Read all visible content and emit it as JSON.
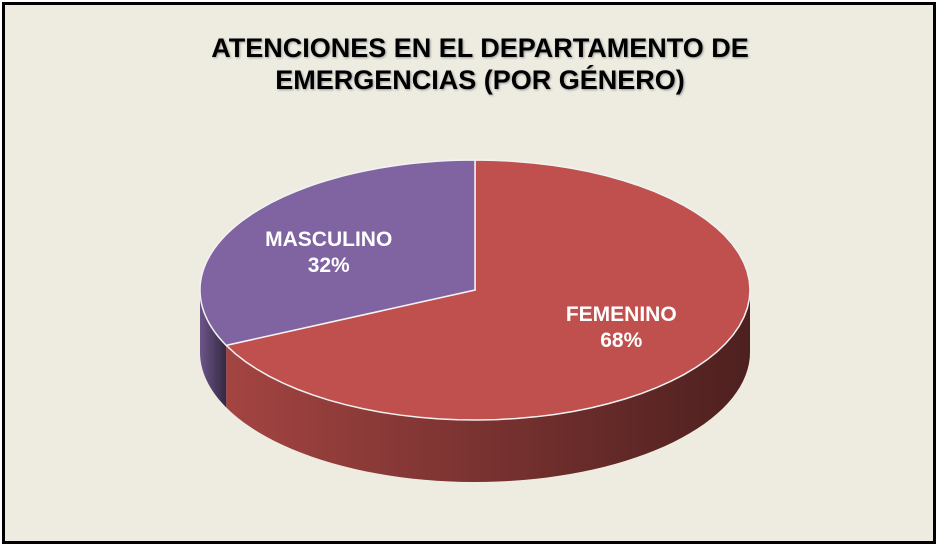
{
  "chart_data": {
    "type": "pie",
    "title": "ATENCIONES EN EL DEPARTAMENTO DE EMERGENCIAS (POR GÉNERO)",
    "categories": [
      "FEMENINO",
      "MASCULINO"
    ],
    "values": [
      68,
      32
    ],
    "value_labels": [
      "68%",
      "32%"
    ],
    "colors": [
      "#c0504d",
      "#8064a2"
    ]
  }
}
